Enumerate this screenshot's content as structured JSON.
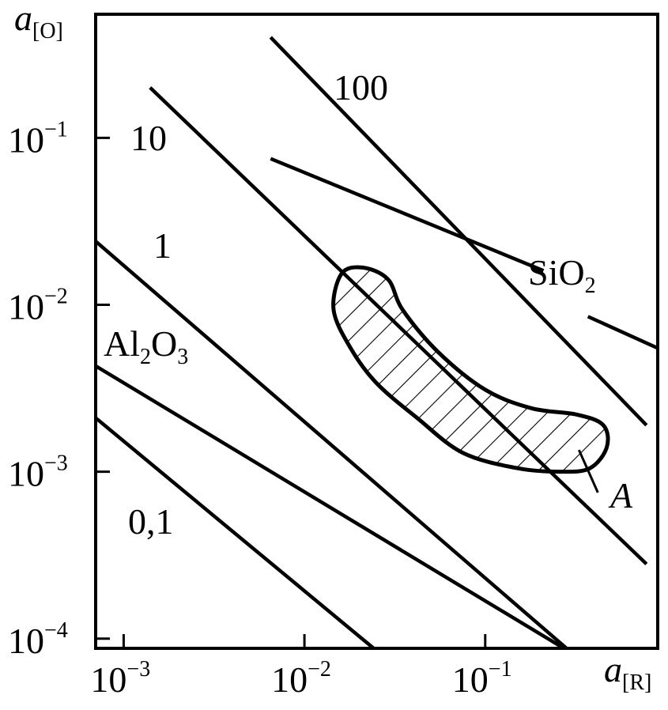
{
  "chart_data": {
    "type": "line",
    "axis_scale": "log-log",
    "x_axis": {
      "label_symbol": "a",
      "label_sub": "[R]",
      "range": [
        0.0007,
        0.9
      ],
      "ticks": [
        {
          "value": 0.001,
          "base": "10",
          "exp": "−3"
        },
        {
          "value": 0.01,
          "base": "10",
          "exp": "−2"
        },
        {
          "value": 0.1,
          "base": "10",
          "exp": "−1"
        }
      ]
    },
    "y_axis": {
      "label_symbol": "a",
      "label_sub": "[O]",
      "range": [
        8.75e-05,
        0.55
      ],
      "ticks": [
        {
          "value": 0.0001,
          "base": "10",
          "exp": "−4"
        },
        {
          "value": 0.001,
          "base": "10",
          "exp": "−3"
        },
        {
          "value": 0.01,
          "base": "10",
          "exp": "−2"
        },
        {
          "value": 0.1,
          "base": "10",
          "exp": "−1"
        }
      ]
    },
    "series": [
      {
        "name": "100",
        "label": "100",
        "points": [
          [
            0.0065,
            0.4
          ],
          [
            0.78,
            0.0019
          ]
        ]
      },
      {
        "name": "10",
        "label": "10",
        "points": [
          [
            0.0014,
            0.2
          ],
          [
            0.78,
            0.00028
          ]
        ]
      },
      {
        "name": "1",
        "label": "1",
        "points": [
          [
            0.0007,
            0.024
          ],
          [
            0.28,
            8.8e-05
          ]
        ]
      },
      {
        "name": "0,1",
        "label": "0,1",
        "points": [
          [
            0.0007,
            0.0021
          ],
          [
            0.024,
            8.8e-05
          ]
        ]
      },
      {
        "name": "SiO2",
        "label": "SiO",
        "label_sub": "2",
        "points": [
          [
            0.0065,
            0.075
          ],
          [
            0.21,
            0.016
          ]
        ],
        "points_continued": [
          [
            0.37,
            0.0085
          ],
          [
            0.9,
            0.0055
          ]
        ]
      },
      {
        "name": "Al2O3",
        "label": "Al",
        "label_sub1": "2",
        "label_mid": "O",
        "label_sub2": "3",
        "points": [
          [
            0.0007,
            0.0043
          ],
          [
            0.27,
            8.8e-05
          ]
        ]
      }
    ],
    "region": {
      "label": "A",
      "hatched": true,
      "outline": [
        [
          0.016,
          0.0153
        ],
        [
          0.021,
          0.0167
        ],
        [
          0.029,
          0.0142
        ],
        [
          0.035,
          0.0093
        ],
        [
          0.055,
          0.0052
        ],
        [
          0.1,
          0.0031
        ],
        [
          0.18,
          0.0024
        ],
        [
          0.32,
          0.0022
        ],
        [
          0.45,
          0.0019
        ],
        [
          0.47,
          0.0014
        ],
        [
          0.38,
          0.00105
        ],
        [
          0.26,
          0.001
        ],
        [
          0.15,
          0.00105
        ],
        [
          0.075,
          0.0013
        ],
        [
          0.042,
          0.0021
        ],
        [
          0.025,
          0.0034
        ],
        [
          0.018,
          0.0055
        ],
        [
          0.0145,
          0.0093
        ]
      ],
      "leader_from": [
        0.33,
        0.00135
      ],
      "leader_to": [
        0.42,
        0.00075
      ]
    }
  }
}
